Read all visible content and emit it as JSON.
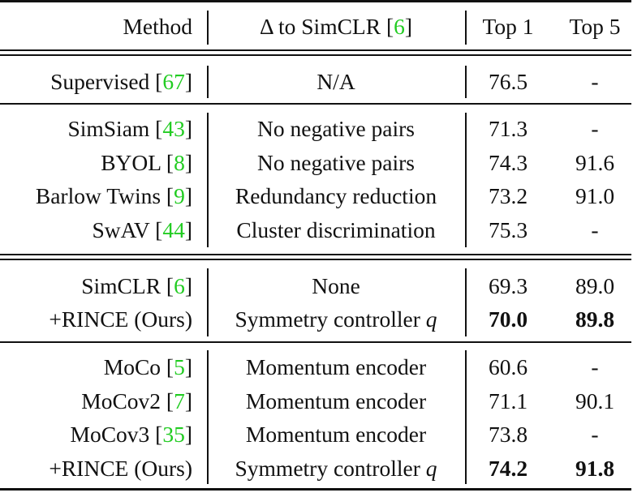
{
  "table": {
    "headers": {
      "method": "Method",
      "delta_symbol": "Δ",
      "delta_text": " to SimCLR [",
      "delta_ref": "6",
      "delta_close": "]",
      "top1": "Top 1",
      "top5": "Top 5"
    },
    "rows": [
      {
        "method": "Supervised [",
        "ref": "67",
        "close": "]",
        "delta": "N/A",
        "top1": "76.5",
        "top5": "-"
      },
      {
        "method": "SimSiam [",
        "ref": "43",
        "close": "]",
        "delta": "No negative pairs",
        "top1": "71.3",
        "top5": "-"
      },
      {
        "method": "BYOL [",
        "ref": "8",
        "close": "]",
        "delta": "No negative pairs",
        "top1": "74.3",
        "top5": "91.6"
      },
      {
        "method": "Barlow Twins [",
        "ref": "9",
        "close": "]",
        "delta": "Redundancy reduction",
        "top1": "73.2",
        "top5": "91.0"
      },
      {
        "method": "SwAV [",
        "ref": "44",
        "close": "]",
        "delta": "Cluster discrimination",
        "top1": "75.3",
        "top5": "-"
      },
      {
        "method": "SimCLR [",
        "ref": "6",
        "close": "]",
        "delta": "None",
        "top1": "69.3",
        "top5": "89.0"
      },
      {
        "method": "+RINCE (Ours)",
        "ref": "",
        "close": "",
        "delta": "Symmetry controller ",
        "delta_var": "q",
        "top1": "70.0",
        "top5": "89.8",
        "bold": true
      },
      {
        "method": "MoCo [",
        "ref": "5",
        "close": "]",
        "delta": "Momentum encoder",
        "top1": "60.6",
        "top5": "-"
      },
      {
        "method": "MoCov2 [",
        "ref": "7",
        "close": "]",
        "delta": "Momentum encoder",
        "top1": "71.1",
        "top5": "90.1"
      },
      {
        "method": "MoCov3 [",
        "ref": "35",
        "close": "]",
        "delta": "Momentum encoder",
        "top1": "73.8",
        "top5": "-"
      },
      {
        "method": "+RINCE (Ours)",
        "ref": "",
        "close": "",
        "delta": "Symmetry controller ",
        "delta_var": "q",
        "top1": "74.2",
        "top5": "91.8",
        "bold": true
      }
    ]
  }
}
